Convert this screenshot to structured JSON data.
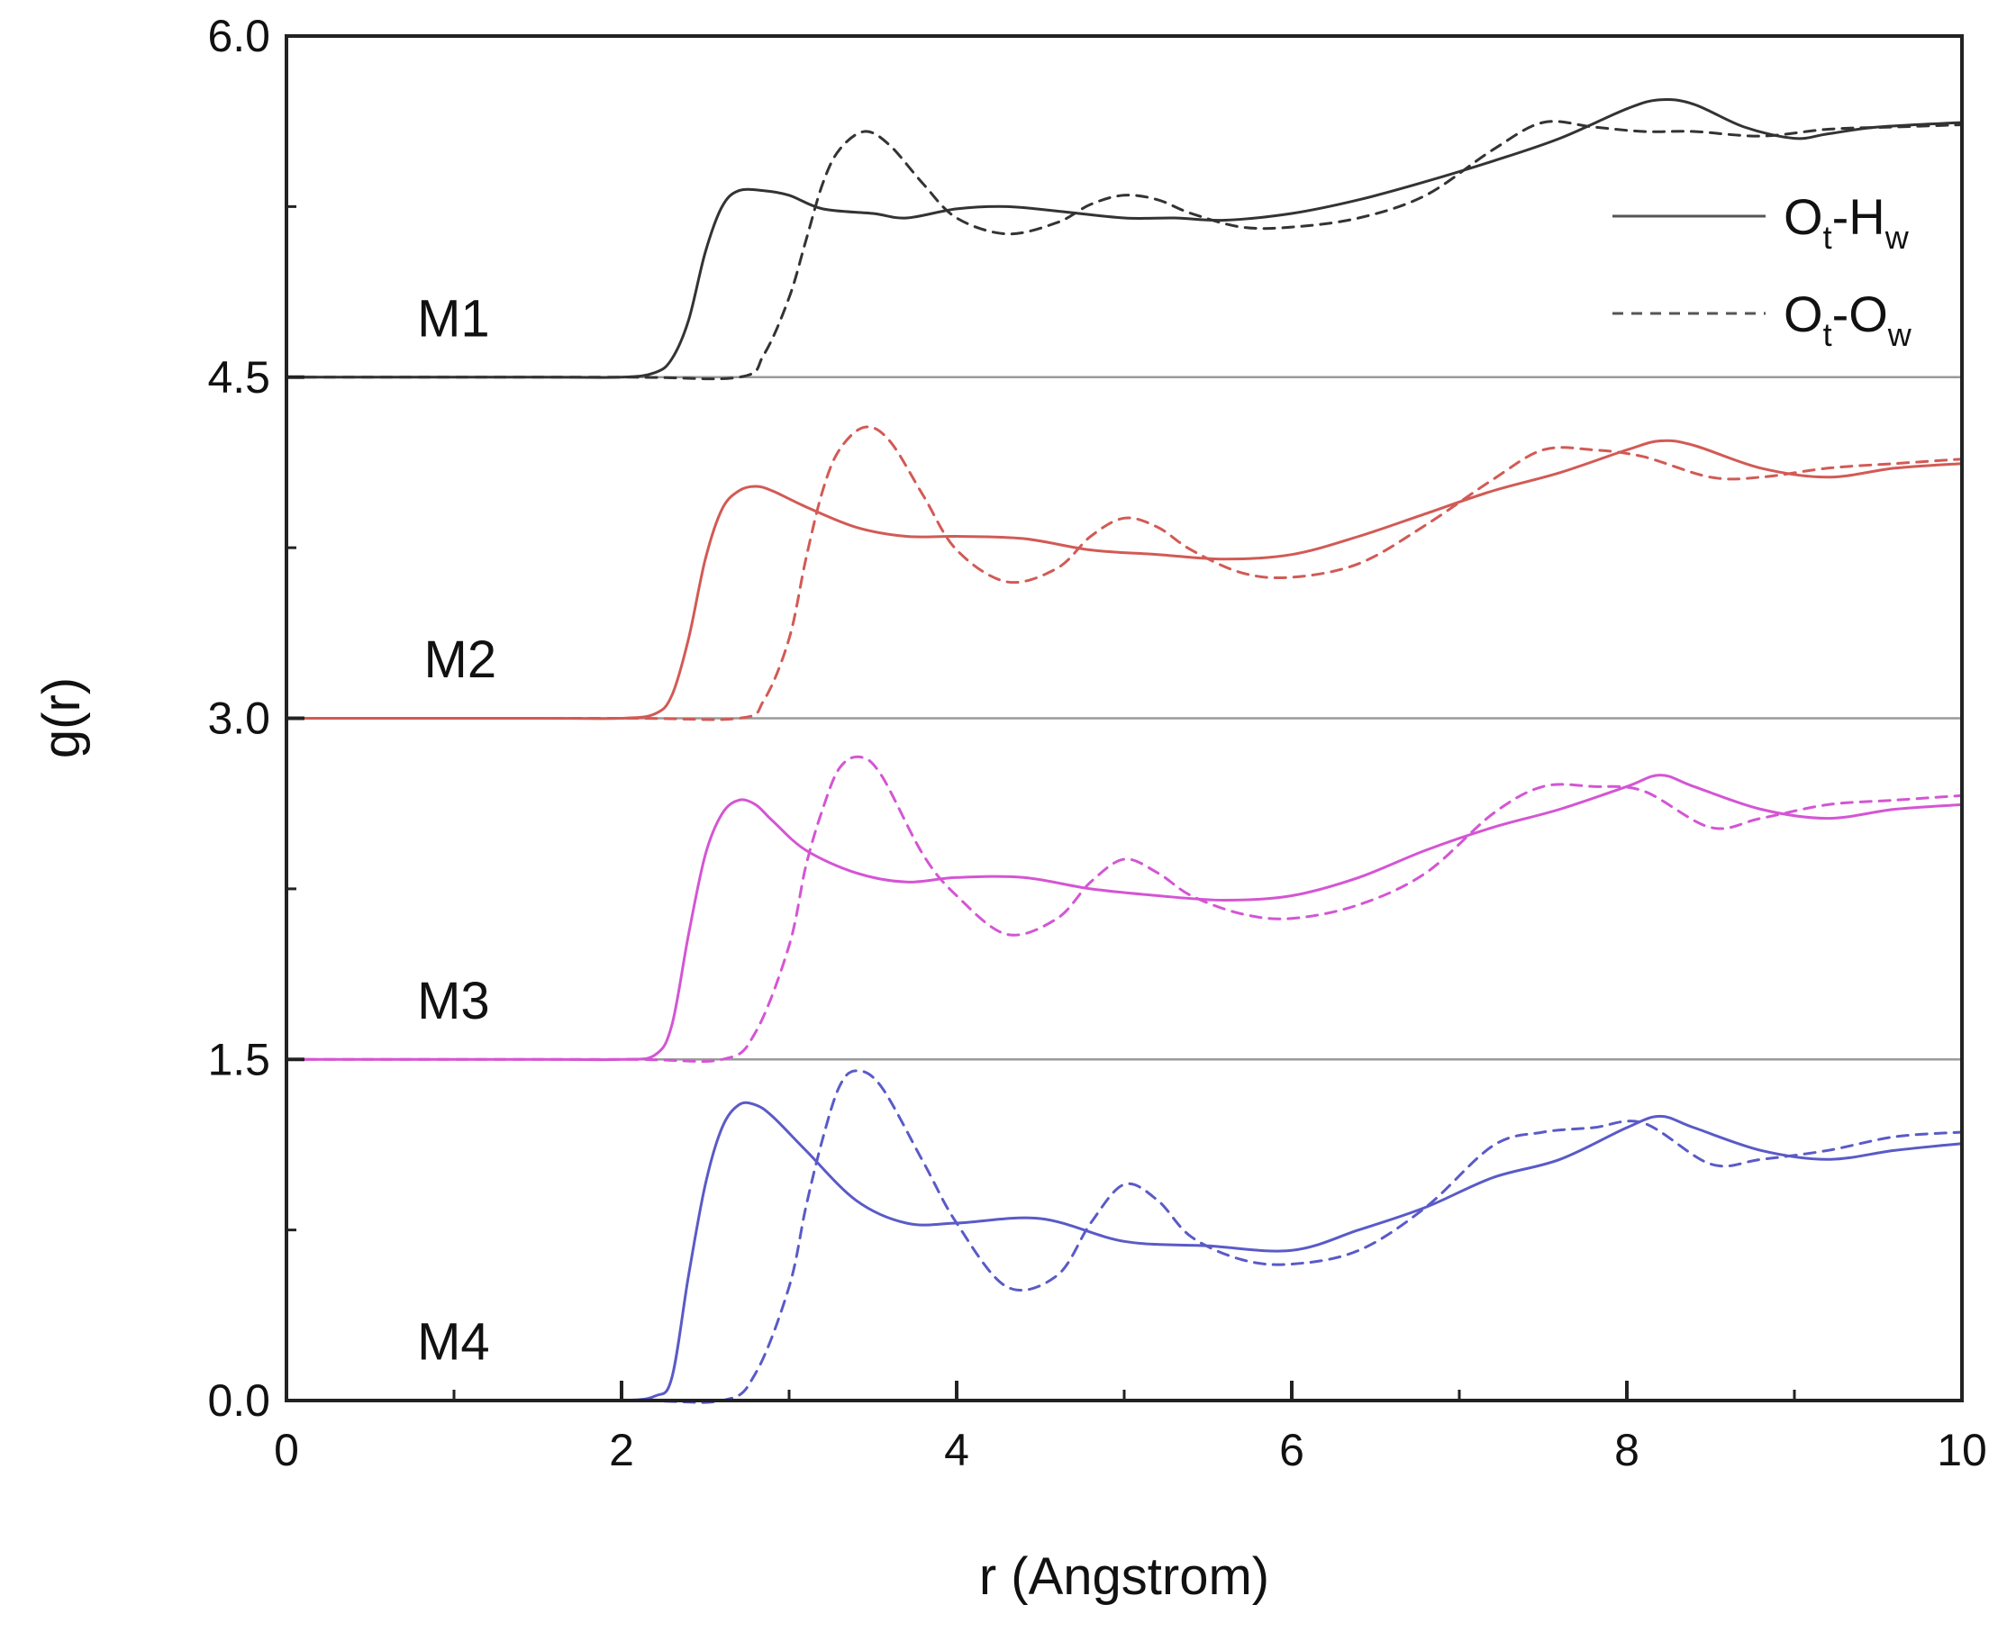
{
  "chart_data": {
    "type": "line",
    "title": "",
    "xlabel": "r (Angstrom)",
    "ylabel": "g(r)",
    "xlim": [
      0,
      10
    ],
    "ylim": [
      0,
      6
    ],
    "x_ticks": [
      "0",
      "2",
      "4",
      "6",
      "8",
      "10"
    ],
    "y_ticks": [
      "0.0",
      "1.5",
      "3.0",
      "4.5",
      "6.0"
    ],
    "grid": false,
    "legend_position": "top-right",
    "legend": [
      {
        "main1": "O",
        "sub1": "t",
        "dash": "-",
        "main2": "H",
        "sub2": "w",
        "style": "solid"
      },
      {
        "main1": "O",
        "sub1": "t",
        "dash": "-",
        "main2": "O",
        "sub2": "w",
        "style": "dashed"
      }
    ],
    "panels": [
      {
        "label": "M1",
        "offset": 4.5,
        "color": "#333333",
        "series": [
          {
            "name": "Ot-Hw",
            "style": "solid",
            "x": [
              0,
              1.5,
              2.0,
              2.2,
              2.3,
              2.4,
              2.5,
              2.6,
              2.7,
              2.85,
              3.0,
              3.2,
              3.5,
              3.7,
              4.0,
              4.3,
              4.6,
              5.0,
              5.3,
              5.6,
              6.0,
              6.4,
              6.8,
              7.2,
              7.6,
              8.0,
              8.2,
              8.4,
              8.7,
              9.0,
              9.2,
              9.5,
              10.0
            ],
            "y": [
              0,
              0,
              0,
              0.02,
              0.08,
              0.25,
              0.55,
              0.75,
              0.82,
              0.82,
              0.8,
              0.74,
              0.72,
              0.7,
              0.74,
              0.75,
              0.73,
              0.7,
              0.7,
              0.69,
              0.72,
              0.78,
              0.86,
              0.95,
              1.05,
              1.18,
              1.22,
              1.2,
              1.1,
              1.05,
              1.07,
              1.1,
              1.12
            ]
          },
          {
            "name": "Ot-Ow",
            "style": "dashed",
            "x": [
              0,
              2.0,
              2.7,
              2.85,
              3.0,
              3.1,
              3.2,
              3.3,
              3.45,
              3.6,
              3.8,
              4.0,
              4.3,
              4.6,
              4.8,
              5.0,
              5.2,
              5.4,
              5.7,
              6.0,
              6.4,
              6.8,
              7.2,
              7.5,
              7.8,
              8.1,
              8.4,
              8.8,
              9.2,
              9.6,
              10.0
            ],
            "y": [
              0,
              0,
              0,
              0.1,
              0.35,
              0.6,
              0.85,
              1.0,
              1.08,
              1.02,
              0.85,
              0.7,
              0.63,
              0.68,
              0.76,
              0.8,
              0.78,
              0.72,
              0.66,
              0.66,
              0.7,
              0.8,
              1.0,
              1.12,
              1.1,
              1.08,
              1.08,
              1.06,
              1.09,
              1.1,
              1.11
            ]
          }
        ]
      },
      {
        "label": "M2",
        "offset": 3.0,
        "color": "#d25a55",
        "series": [
          {
            "name": "Ot-Hw",
            "style": "solid",
            "x": [
              0,
              1.5,
              2.0,
              2.2,
              2.3,
              2.4,
              2.5,
              2.6,
              2.7,
              2.8,
              2.9,
              3.1,
              3.4,
              3.7,
              4.0,
              4.4,
              4.8,
              5.2,
              5.6,
              6.0,
              6.4,
              6.8,
              7.2,
              7.6,
              8.0,
              8.2,
              8.4,
              8.8,
              9.2,
              9.6,
              10.0
            ],
            "y": [
              0,
              0,
              0,
              0.02,
              0.1,
              0.35,
              0.7,
              0.92,
              1.0,
              1.02,
              1.0,
              0.93,
              0.84,
              0.8,
              0.8,
              0.79,
              0.74,
              0.72,
              0.7,
              0.72,
              0.8,
              0.9,
              1.0,
              1.08,
              1.18,
              1.22,
              1.2,
              1.1,
              1.06,
              1.1,
              1.12
            ]
          },
          {
            "name": "Ot-Ow",
            "style": "dashed",
            "x": [
              0,
              2.0,
              2.7,
              2.85,
              3.0,
              3.1,
              3.2,
              3.3,
              3.45,
              3.6,
              3.8,
              4.0,
              4.3,
              4.6,
              4.8,
              5.0,
              5.2,
              5.4,
              5.7,
              6.0,
              6.4,
              6.8,
              7.2,
              7.5,
              7.8,
              8.1,
              8.5,
              8.8,
              9.2,
              9.6,
              10.0
            ],
            "y": [
              0,
              0,
              0,
              0.08,
              0.35,
              0.7,
              1.0,
              1.18,
              1.28,
              1.22,
              0.98,
              0.74,
              0.6,
              0.66,
              0.8,
              0.88,
              0.84,
              0.74,
              0.64,
              0.62,
              0.68,
              0.85,
              1.05,
              1.18,
              1.18,
              1.15,
              1.06,
              1.06,
              1.1,
              1.12,
              1.14
            ]
          }
        ]
      },
      {
        "label": "M3",
        "offset": 1.5,
        "color": "#d455d4",
        "series": [
          {
            "name": "Ot-Hw",
            "style": "solid",
            "x": [
              0,
              1.5,
              2.0,
              2.2,
              2.3,
              2.4,
              2.5,
              2.6,
              2.7,
              2.8,
              2.9,
              3.1,
              3.4,
              3.7,
              4.0,
              4.4,
              4.8,
              5.2,
              5.6,
              6.0,
              6.4,
              6.8,
              7.2,
              7.6,
              8.0,
              8.2,
              8.4,
              8.8,
              9.2,
              9.6,
              10.0
            ],
            "y": [
              0,
              0,
              0,
              0.02,
              0.15,
              0.55,
              0.9,
              1.08,
              1.14,
              1.12,
              1.05,
              0.92,
              0.82,
              0.78,
              0.8,
              0.8,
              0.75,
              0.72,
              0.7,
              0.72,
              0.8,
              0.92,
              1.02,
              1.1,
              1.2,
              1.25,
              1.2,
              1.1,
              1.06,
              1.1,
              1.12
            ]
          },
          {
            "name": "Ot-Ow",
            "style": "dashed",
            "x": [
              0,
              2.0,
              2.6,
              2.8,
              3.0,
              3.1,
              3.2,
              3.3,
              3.42,
              3.55,
              3.8,
              4.0,
              4.3,
              4.6,
              4.8,
              5.0,
              5.2,
              5.4,
              5.7,
              6.0,
              6.4,
              6.8,
              7.2,
              7.5,
              7.8,
              8.1,
              8.5,
              8.8,
              9.2,
              9.6,
              10.0
            ],
            "y": [
              0,
              0,
              0,
              0.12,
              0.5,
              0.85,
              1.1,
              1.28,
              1.33,
              1.25,
              0.9,
              0.72,
              0.55,
              0.62,
              0.78,
              0.88,
              0.82,
              0.72,
              0.64,
              0.62,
              0.68,
              0.82,
              1.08,
              1.2,
              1.2,
              1.18,
              1.02,
              1.06,
              1.12,
              1.14,
              1.16
            ]
          }
        ]
      },
      {
        "label": "M4",
        "offset": 0.0,
        "color": "#5a5ac8",
        "series": [
          {
            "name": "Ot-Hw",
            "style": "solid",
            "x": [
              0,
              1.5,
              2.0,
              2.2,
              2.3,
              2.4,
              2.5,
              2.6,
              2.7,
              2.8,
              2.9,
              3.1,
              3.4,
              3.7,
              4.0,
              4.5,
              5.0,
              5.5,
              6.0,
              6.4,
              6.8,
              7.2,
              7.6,
              8.0,
              8.2,
              8.4,
              8.8,
              9.2,
              9.6,
              10.0
            ],
            "y": [
              0,
              0,
              0,
              0.02,
              0.1,
              0.55,
              0.95,
              1.2,
              1.3,
              1.3,
              1.25,
              1.1,
              0.88,
              0.78,
              0.78,
              0.8,
              0.7,
              0.68,
              0.66,
              0.75,
              0.85,
              0.98,
              1.06,
              1.2,
              1.25,
              1.2,
              1.1,
              1.06,
              1.1,
              1.13
            ]
          },
          {
            "name": "Ot-Ow",
            "style": "dashed",
            "x": [
              0,
              2.0,
              2.6,
              2.8,
              3.0,
              3.1,
              3.2,
              3.3,
              3.4,
              3.55,
              3.8,
              4.0,
              4.3,
              4.6,
              4.8,
              5.0,
              5.2,
              5.4,
              5.7,
              6.0,
              6.4,
              6.8,
              7.2,
              7.5,
              7.8,
              8.1,
              8.5,
              8.8,
              9.2,
              9.6,
              10.0
            ],
            "y": [
              0,
              0,
              0,
              0.12,
              0.5,
              0.85,
              1.15,
              1.38,
              1.45,
              1.38,
              1.05,
              0.78,
              0.5,
              0.55,
              0.78,
              0.95,
              0.88,
              0.72,
              0.62,
              0.6,
              0.66,
              0.85,
              1.12,
              1.18,
              1.2,
              1.22,
              1.04,
              1.06,
              1.1,
              1.16,
              1.18
            ]
          }
        ]
      }
    ]
  }
}
